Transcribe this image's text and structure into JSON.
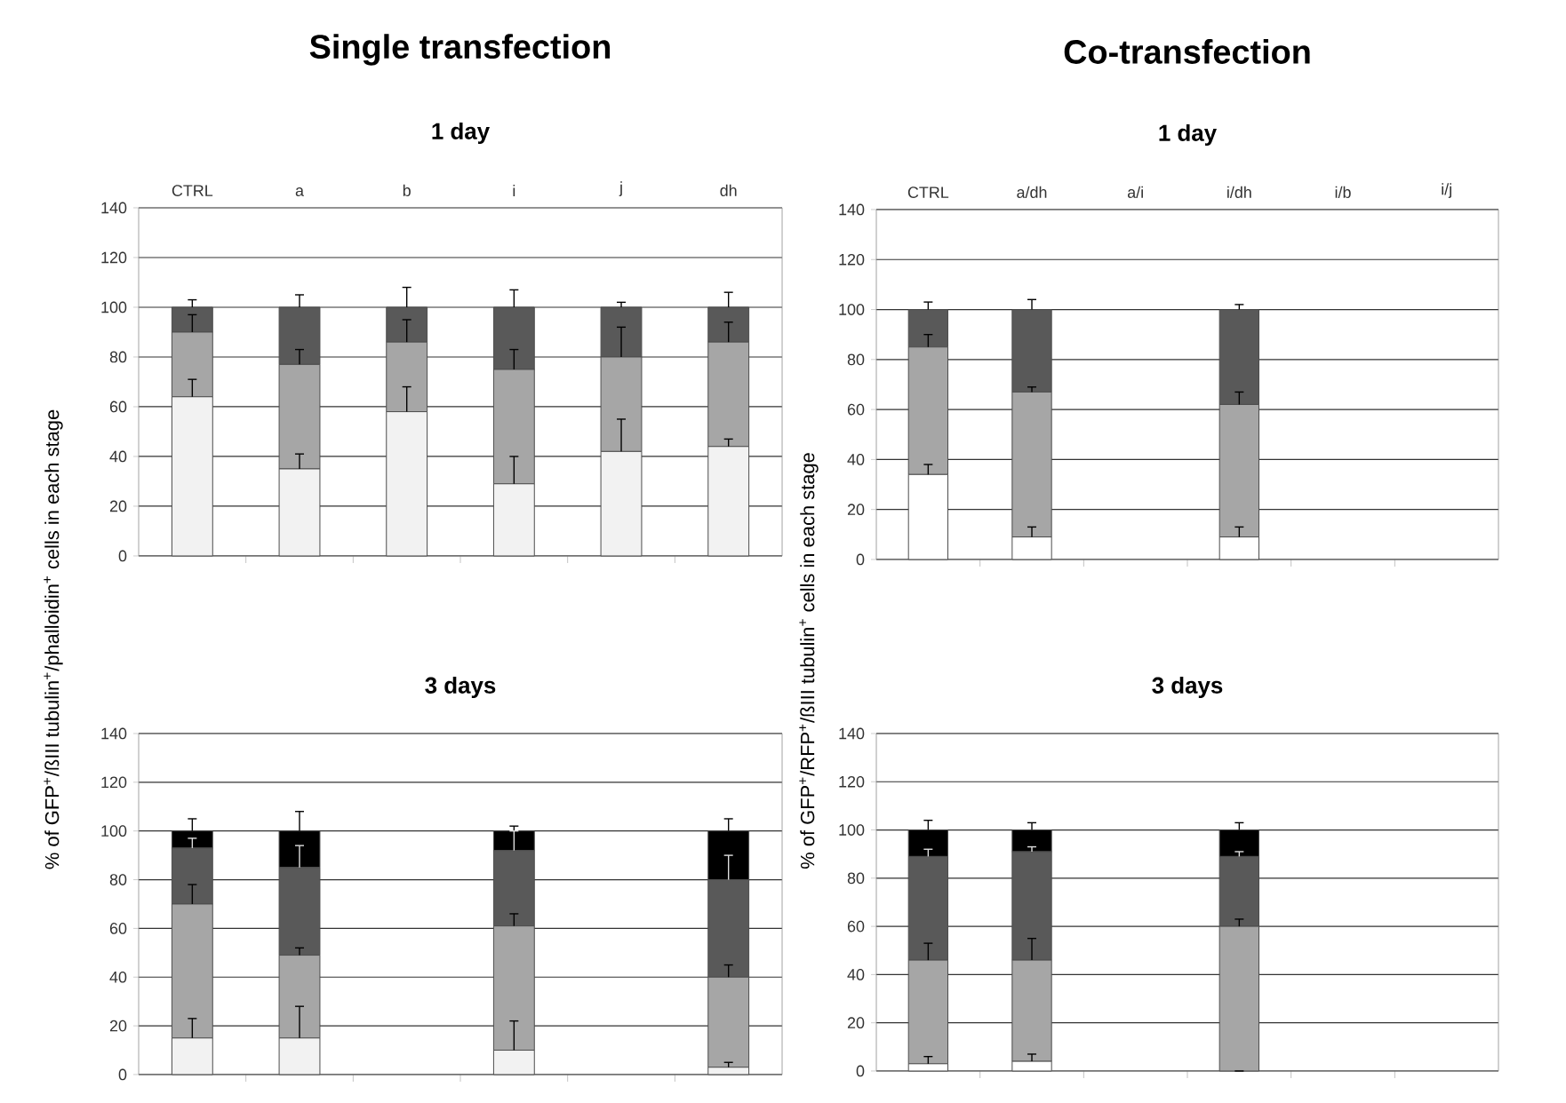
{
  "chart_data": [
    {
      "type": "bar",
      "stacked": true,
      "title": "Single transfection",
      "subtitle": "1 day",
      "ylabel": "% of GFP$^{+}$/ßIII tubulin$^{+}$/phalloidin$^{+}$ cells in each stage",
      "categories": [
        "CTRL",
        "a",
        "b",
        "i",
        "j",
        "dh"
      ],
      "ylim": [
        0,
        140
      ],
      "yticks": [
        0,
        20,
        40,
        60,
        80,
        100,
        120,
        140
      ],
      "grid": "y",
      "series": [
        {
          "color": "#f2f2f2",
          "values": [
            64,
            35,
            58,
            29,
            42,
            44
          ],
          "errors": [
            [
              64,
              71
            ],
            [
              35,
              41
            ],
            [
              58,
              68
            ],
            [
              29,
              40
            ],
            [
              42,
              55
            ],
            [
              44,
              47
            ]
          ]
        },
        {
          "color": "#a6a6a6",
          "values": [
            26,
            42,
            28,
            46,
            38,
            42
          ],
          "errors": [
            [
              90,
              97
            ],
            [
              77,
              83
            ],
            [
              86,
              95
            ],
            [
              75,
              83
            ],
            [
              80,
              92
            ],
            [
              86,
              94
            ]
          ]
        },
        {
          "color": "#595959",
          "values": [
            10,
            23,
            14,
            25,
            20,
            14
          ],
          "errors": [
            [
              100,
              103
            ],
            [
              100,
              105
            ],
            [
              100,
              108
            ],
            [
              100,
              107
            ],
            [
              100,
              102
            ],
            [
              100,
              106
            ]
          ]
        }
      ]
    },
    {
      "type": "bar",
      "stacked": true,
      "title": "Co-transfection",
      "subtitle": "1 day",
      "ylabel": "% of GFP$^{+}$/RFP$^{+}$/ßIII tubulin$^{+}$ cells in each stage",
      "categories": [
        "CTRL",
        "a/dh",
        "a/i",
        "i/dh",
        "i/b",
        "i/j"
      ],
      "ylim": [
        0,
        140
      ],
      "yticks": [
        0,
        20,
        40,
        60,
        80,
        100,
        120,
        140
      ],
      "grid": "y",
      "series": [
        {
          "color": "#ffffff",
          "values": [
            34,
            9,
            null,
            9,
            null,
            null
          ],
          "errors": [
            [
              34,
              38
            ],
            [
              9,
              13
            ],
            null,
            [
              9,
              13
            ],
            null,
            null
          ]
        },
        {
          "color": "#a6a6a6",
          "values": [
            51,
            58,
            null,
            53,
            null,
            null
          ],
          "errors": [
            [
              85,
              90
            ],
            [
              67,
              69
            ],
            null,
            [
              62,
              67
            ],
            null,
            null
          ]
        },
        {
          "color": "#595959",
          "values": [
            15,
            33,
            null,
            38,
            null,
            null
          ],
          "errors": [
            [
              100,
              103
            ],
            [
              100,
              104
            ],
            null,
            [
              100,
              102
            ],
            null,
            null
          ]
        }
      ]
    },
    {
      "type": "bar",
      "stacked": true,
      "title": "3 days",
      "categories": [
        null,
        null,
        null,
        null,
        null,
        null
      ],
      "tick_labels": "y",
      "ylim": [
        0,
        140
      ],
      "yticks": [
        0,
        20,
        40,
        60,
        80,
        100,
        120,
        140
      ],
      "grid": "y",
      "series": [
        {
          "color": "#f2f2f2",
          "values": [
            15,
            15,
            null,
            10,
            null,
            3
          ],
          "errors": [
            [
              15,
              23
            ],
            [
              15,
              28
            ],
            null,
            [
              10,
              22
            ],
            null,
            [
              3,
              5
            ]
          ]
        },
        {
          "color": "#a6a6a6",
          "values": [
            55,
            34,
            null,
            51,
            null,
            37
          ],
          "errors": [
            [
              70,
              78
            ],
            [
              49,
              52
            ],
            null,
            [
              61,
              66
            ],
            null,
            [
              40,
              45
            ]
          ]
        },
        {
          "color": "#595959",
          "values": [
            23,
            36,
            null,
            31,
            null,
            40
          ],
          "errors": [
            [
              93,
              97
            ],
            [
              85,
              94
            ],
            null,
            [
              92,
              100
            ],
            null,
            [
              80,
              90
            ]
          ]
        },
        {
          "color": "#000000",
          "values": [
            7,
            15,
            null,
            8,
            null,
            20
          ],
          "errors": [
            [
              100,
              105
            ],
            [
              100,
              108
            ],
            null,
            [
              100,
              102
            ],
            null,
            [
              100,
              105
            ]
          ]
        }
      ]
    },
    {
      "type": "bar",
      "stacked": true,
      "title": "3 days",
      "categories": [
        null,
        null,
        null,
        null,
        null,
        null
      ],
      "tick_labels": "y",
      "ylim": [
        0,
        140
      ],
      "yticks": [
        0,
        20,
        40,
        60,
        80,
        100,
        120,
        140
      ],
      "grid": "y",
      "series": [
        {
          "color": "#ffffff",
          "values": [
            3,
            4,
            null,
            0,
            null,
            null
          ],
          "errors": [
            [
              3,
              6
            ],
            [
              4,
              7
            ],
            null,
            null,
            null,
            null
          ]
        },
        {
          "color": "#a6a6a6",
          "values": [
            43,
            42,
            null,
            60,
            null,
            null
          ],
          "errors": [
            [
              46,
              53
            ],
            [
              46,
              55
            ],
            null,
            [
              60,
              63
            ],
            null,
            null
          ]
        },
        {
          "color": "#595959",
          "values": [
            43,
            45,
            null,
            29,
            null,
            null
          ],
          "errors": [
            [
              89,
              92
            ],
            [
              91,
              93
            ],
            null,
            [
              89,
              91
            ],
            null,
            null
          ]
        },
        {
          "color": "#000000",
          "values": [
            11,
            9,
            null,
            11,
            null,
            null
          ],
          "errors": [
            [
              100,
              104
            ],
            [
              100,
              103
            ],
            null,
            [
              100,
              103
            ],
            null,
            null
          ]
        }
      ]
    }
  ]
}
